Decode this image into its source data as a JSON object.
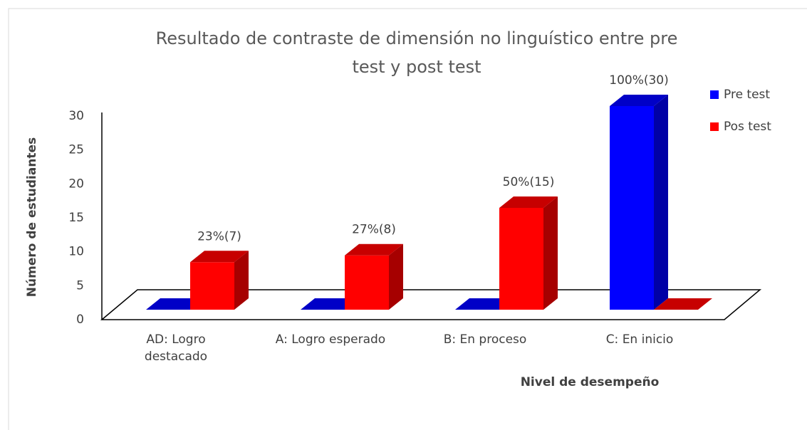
{
  "chart_data": {
    "type": "bar3d",
    "title": "Resultado de contraste de  dimensión no linguístico entre pre test y post test",
    "xlabel": "Nivel de desempeño",
    "ylabel": "Número de estudiantes",
    "categories": [
      "AD: Logro destacado",
      "A: Logro esperado",
      "B: En proceso",
      "C: En inicio"
    ],
    "series": [
      {
        "name": "Pre test",
        "color": "#0000ff",
        "values": [
          0,
          0,
          0,
          30
        ],
        "value_labels": [
          null,
          null,
          null,
          "100%(30)"
        ]
      },
      {
        "name": "Pos test",
        "color": "#ff0000",
        "values": [
          7,
          8,
          15,
          0
        ],
        "value_labels": [
          "23%(7)",
          "27%(8)",
          "50%(15)",
          null
        ]
      }
    ],
    "ylim": [
      0,
      30
    ],
    "yticks": [
      0,
      5,
      10,
      15,
      20,
      25,
      30
    ]
  }
}
